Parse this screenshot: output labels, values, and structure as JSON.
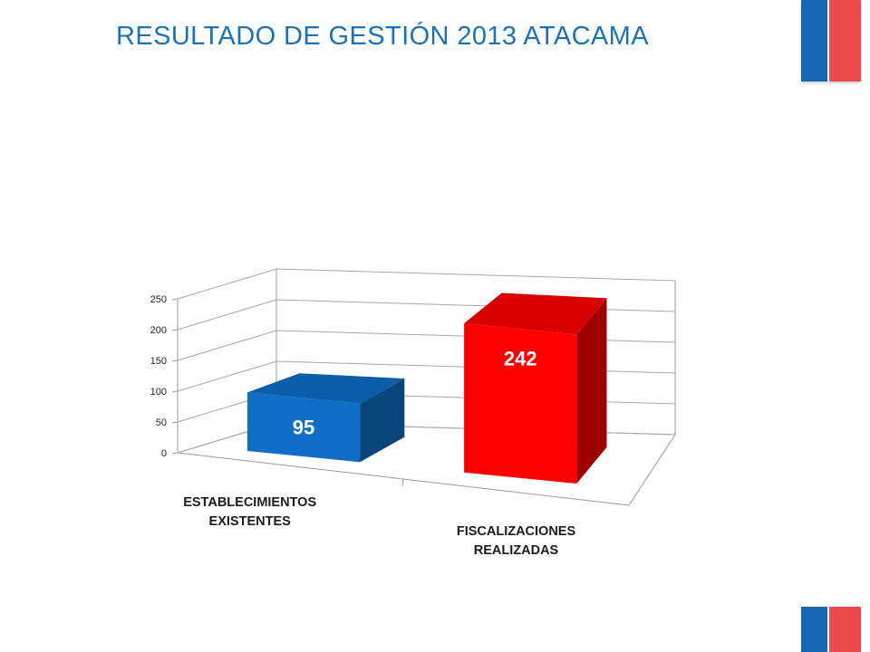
{
  "page": {
    "title": "RESULTADO DE GESTIÓN 2013 ATACAMA"
  },
  "colors": {
    "title": "#1a73b8",
    "flag_blue": "#1467b0",
    "flag_red": "#ea4a4b",
    "bar_blue": "#0f6fc6",
    "bar_red": "#ff0000"
  },
  "chart_data": {
    "type": "bar",
    "subtype": "3d-column",
    "title": "",
    "xlabel": "",
    "ylabel": "",
    "categories": [
      "ESTABLECIMIENTOS EXISTENTES",
      "FISCALIZACIONES REALIZADAS"
    ],
    "category_lines": [
      [
        "ESTABLECIMIENTOS",
        "EXISTENTES"
      ],
      [
        "FISCALIZACIONES",
        "REALIZADAS"
      ]
    ],
    "values": [
      95,
      242
    ],
    "data_labels": [
      "95",
      "242"
    ],
    "bar_colors": [
      "#0f6fc6",
      "#ff0000"
    ],
    "ylim": [
      0,
      250
    ],
    "yticks": [
      0,
      50,
      100,
      150,
      200,
      250
    ],
    "ytick_labels": [
      "0",
      "50",
      "100",
      "150",
      "200",
      "250"
    ],
    "grid": true,
    "legend": "none"
  }
}
